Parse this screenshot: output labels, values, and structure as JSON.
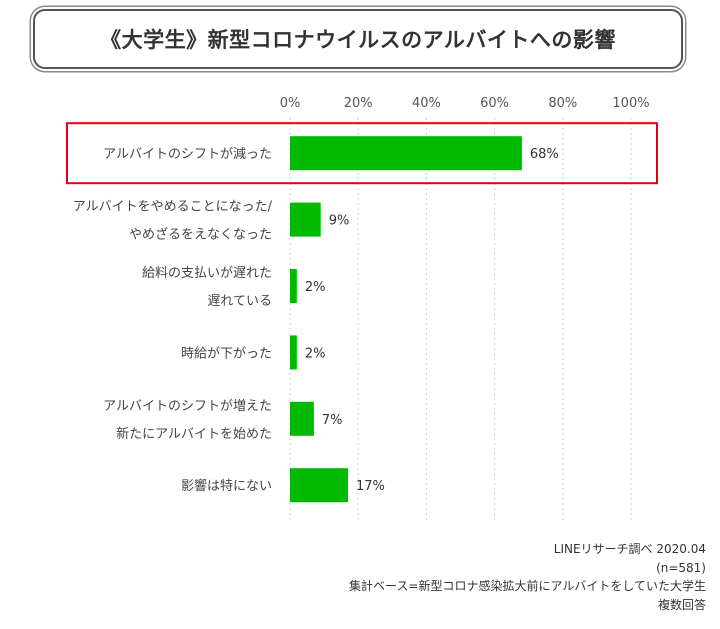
{
  "chart_data": {
    "type": "bar",
    "orientation": "horizontal",
    "title": "《大学生》新型コロナウイルスのアルバイトへの影響",
    "categories": [
      [
        "アルバイトのシフトが減った"
      ],
      [
        "アルバイトをやめることになった/",
        "やめざるをえなくなった"
      ],
      [
        "給料の支払いが遅れた",
        "遅れている"
      ],
      [
        "時給が下がった"
      ],
      [
        "アルバイトのシフトが増えた",
        "新たにアルバイトを始めた"
      ],
      [
        "影響は特にない"
      ]
    ],
    "values": [
      68,
      9,
      2,
      2,
      7,
      17
    ],
    "value_labels": [
      "68%",
      "9%",
      "2%",
      "2%",
      "7%",
      "17%"
    ],
    "xlim": [
      0,
      100
    ],
    "x_ticks": [
      "0%",
      "20%",
      "40%",
      "60%",
      "80%",
      "100%"
    ],
    "x_tick_values": [
      0,
      20,
      40,
      60,
      80,
      100
    ],
    "xaxis_position": "top",
    "grid": "vertical dotted",
    "bar_color": "#00b900",
    "highlight_category_index": 0,
    "highlight_color": "#e60012"
  },
  "footer": {
    "source": "LINEリサーチ調べ 2020.04",
    "sample": "(n=581)",
    "base": "集計ベース=新型コロナ感染拡大前にアルバイトをしていた大学生",
    "note": "複数回答"
  }
}
